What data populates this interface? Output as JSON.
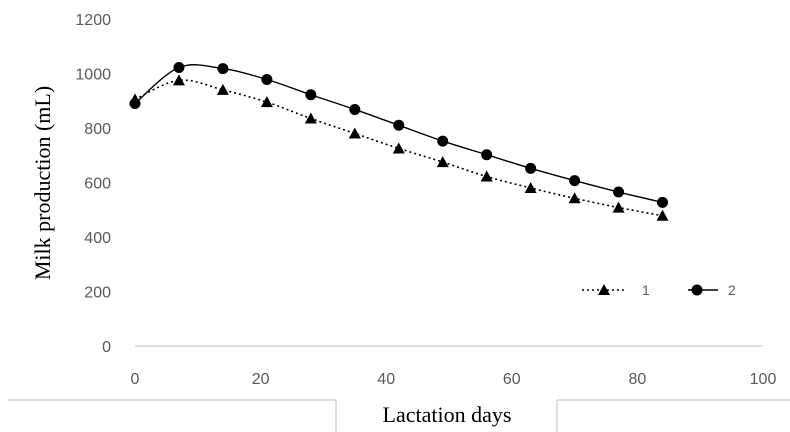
{
  "chart_data": {
    "type": "line",
    "title": "",
    "xlabel": "Lactation days",
    "ylabel": "Milk production (mL)",
    "xlim": [
      0,
      100
    ],
    "ylim": [
      0,
      1200
    ],
    "xticks": [
      0,
      20,
      40,
      60,
      80,
      100
    ],
    "yticks": [
      0,
      200,
      400,
      600,
      800,
      1000,
      1200
    ],
    "grid": false,
    "legend_position": "bottom-right",
    "series": [
      {
        "name": "1",
        "marker": "triangle",
        "line_style": "dotted",
        "color": "#000000",
        "x": [
          0,
          7,
          14,
          21,
          28,
          35,
          42,
          49,
          56,
          63,
          70,
          77,
          84
        ],
        "y": [
          905,
          975,
          940,
          895,
          835,
          780,
          725,
          675,
          622,
          580,
          542,
          508,
          478
        ]
      },
      {
        "name": "2",
        "marker": "circle",
        "line_style": "solid",
        "color": "#000000",
        "x": [
          0,
          7,
          14,
          21,
          28,
          35,
          42,
          49,
          56,
          63,
          70,
          77,
          84
        ],
        "y": [
          890,
          1022,
          1018,
          978,
          922,
          868,
          810,
          752,
          702,
          652,
          607,
          565,
          527
        ]
      }
    ]
  }
}
